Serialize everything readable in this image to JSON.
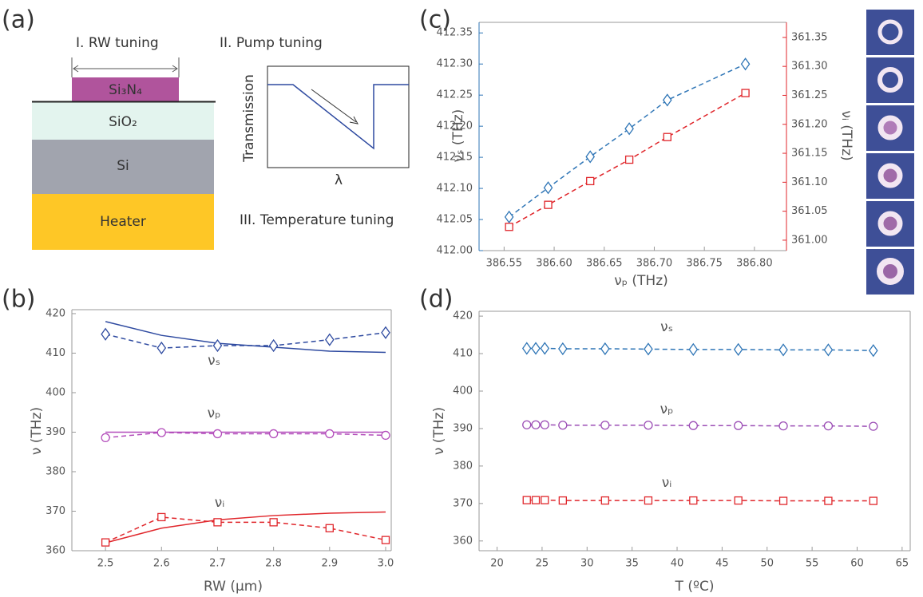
{
  "diagram": {
    "panel_label": "(a)",
    "layers": [
      "Si₃N₄",
      "SiO₂",
      "Si",
      "Heater"
    ],
    "steps": [
      "I. RW tuning",
      "II. Pump tuning",
      "III. Temperature tuning"
    ],
    "inset": {
      "y_label": "Transmission",
      "x_label": "λ"
    }
  },
  "chart_data": [
    {
      "type": "line",
      "panel_label": "(b)",
      "x_label": "RW (µm)",
      "y_label": "ν (THz)",
      "x": [
        2.5,
        2.6,
        2.7,
        2.8,
        2.9,
        3.0
      ],
      "series": [
        {
          "color": "#2e4aa0",
          "line": "solid",
          "marker": "none",
          "values": [
            418,
            414.5,
            412.5,
            411.5,
            410.5,
            410.2
          ]
        },
        {
          "color": "#2e4aa0",
          "line": "dashed",
          "marker": "diamond",
          "values": [
            414.8,
            411.3,
            411.9,
            411.9,
            413.4,
            415.2
          ]
        },
        {
          "color": "#b34dbb",
          "line": "solid",
          "marker": "none",
          "values": [
            390,
            390,
            390,
            390,
            390,
            390
          ]
        },
        {
          "color": "#b34dbb",
          "line": "dashed",
          "marker": "circle",
          "values": [
            388.6,
            389.9,
            389.6,
            389.6,
            389.6,
            389.2
          ]
        },
        {
          "color": "#e0262b",
          "line": "solid",
          "marker": "none",
          "values": [
            362,
            365.7,
            367.8,
            368.9,
            369.5,
            369.8
          ]
        },
        {
          "color": "#e0262b",
          "line": "dashed",
          "marker": "square",
          "values": [
            362.1,
            368.5,
            367.2,
            367.2,
            365.7,
            362.7
          ]
        }
      ],
      "annotations": [
        "νₛ",
        "νₚ",
        "νᵢ"
      ],
      "xlim": [
        2.44,
        3.01
      ],
      "xticks": [
        2.5,
        2.6,
        2.7,
        2.8,
        2.9,
        {
          "value": 3,
          "label": "3.0"
        }
      ],
      "ylim": [
        360,
        421
      ],
      "yticks": [
        360,
        370,
        380,
        390,
        400,
        410,
        420
      ]
    },
    {
      "type": "line",
      "panel_label": "(c)",
      "x_label": "νₚ (THz)",
      "y_label": "νₛ (THz)",
      "y2_label": "νᵢ (THz)",
      "y_axis_color": "#2e75b6",
      "y2_axis_color": "#e0262b",
      "x": [
        386.555,
        386.594,
        386.636,
        386.675,
        386.713,
        386.791
      ],
      "series": [
        {
          "color": "#2e75b6",
          "line": "dashed",
          "marker": "diamond",
          "values": [
            412.054,
            412.101,
            412.151,
            412.196,
            412.242,
            412.3
          ]
        },
        {
          "color": "#e0262b",
          "line": "dashed",
          "marker": "square",
          "axis": "y2",
          "values": [
            361.023,
            361.061,
            361.102,
            361.139,
            361.178,
            361.254
          ]
        }
      ],
      "xlim": [
        386.525,
        386.832
      ],
      "xticks": [
        386.55,
        {
          "value": 386.6,
          "label": "386.60"
        },
        386.65,
        {
          "value": 386.7,
          "label": "386.70"
        },
        386.75,
        {
          "value": 386.8,
          "label": "386.80"
        }
      ],
      "ylim": [
        412,
        412.367
      ],
      "yticks": [
        {
          "value": 412,
          "label": "412.00"
        },
        412.05,
        {
          "value": 412.1,
          "label": "412.10"
        },
        412.15,
        {
          "value": 412.2,
          "label": "412.20"
        },
        412.25,
        {
          "value": 412.3,
          "label": "412.30"
        },
        412.35
      ],
      "y2lim": [
        360.982,
        361.376
      ],
      "y2ticks": [
        {
          "value": 361,
          "label": "361.00"
        },
        361.05,
        {
          "value": 361.1,
          "label": "361.10"
        },
        361.15,
        {
          "value": 361.2,
          "label": "361.20"
        },
        361.25,
        {
          "value": 361.3,
          "label": "361.30"
        },
        361.35
      ]
    },
    {
      "type": "line",
      "panel_label": "(d)",
      "x_label": "T (ºC)",
      "y_label": "ν (THz)",
      "x": [
        23.3,
        24.3,
        25.3,
        27.3,
        32,
        36.8,
        41.8,
        46.8,
        51.8,
        56.8,
        61.8
      ],
      "series": [
        {
          "color": "#2e75b6",
          "line": "dashed",
          "marker": "diamond",
          "values": [
            411.4,
            411.4,
            411.4,
            411.3,
            411.3,
            411.2,
            411.1,
            411.1,
            411.0,
            411.0,
            410.8
          ]
        },
        {
          "color": "#9b4db5",
          "line": "dashed",
          "marker": "circle",
          "values": [
            391.0,
            391.0,
            391.0,
            390.9,
            390.9,
            390.9,
            390.8,
            390.8,
            390.7,
            390.7,
            390.6
          ]
        },
        {
          "color": "#e0262b",
          "line": "dashed",
          "marker": "square",
          "values": [
            370.9,
            370.9,
            370.9,
            370.8,
            370.8,
            370.8,
            370.8,
            370.8,
            370.7,
            370.7,
            370.7
          ]
        }
      ],
      "annotations": [
        "νₛ",
        "νₚ",
        "νᵢ"
      ],
      "xlim": [
        18,
        65.9
      ],
      "xticks": [
        20,
        25,
        30,
        35,
        40,
        45,
        50,
        55,
        60,
        65
      ],
      "ylim": [
        357.4,
        421.3
      ],
      "yticks": [
        360,
        370,
        380,
        390,
        400,
        410,
        420
      ]
    }
  ]
}
